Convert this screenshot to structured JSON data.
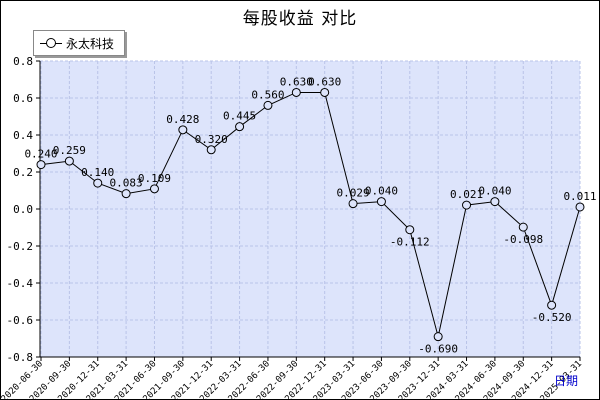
{
  "title": "每股收益 对比",
  "period_label": "日期",
  "legend": {
    "label": "永太科技"
  },
  "chart_data": {
    "type": "line",
    "title": "每股收益 对比",
    "xlabel": "日期",
    "ylabel": "",
    "ylim": [
      -0.8,
      0.8
    ],
    "yticks": [
      "0.8",
      "0.6",
      "0.4",
      "0.2",
      "0.0",
      "-0.2",
      "-0.4",
      "-0.6",
      "-0.8"
    ],
    "grid": true,
    "legend_position": "top-left",
    "categories": [
      "2020-06-30",
      "2020-09-30",
      "2020-12-31",
      "2021-03-31",
      "2021-06-30",
      "2021-09-30",
      "2021-12-31",
      "2022-03-31",
      "2022-06-30",
      "2022-09-30",
      "2022-12-31",
      "2023-03-31",
      "2023-06-30",
      "2023-09-30",
      "2023-12-31",
      "2024-03-31",
      "2024-06-30",
      "2024-09-30",
      "2024-12-31",
      "2025-03-31"
    ],
    "series": [
      {
        "name": "永太科技",
        "values": [
          0.24,
          0.259,
          0.14,
          0.083,
          0.109,
          0.428,
          0.32,
          0.445,
          0.56,
          0.63,
          0.63,
          0.029,
          0.04,
          -0.112,
          -0.69,
          0.021,
          0.04,
          -0.098,
          -0.52,
          0.011
        ],
        "labels": [
          "0.240",
          "0.259",
          "0.140",
          "0.083",
          "0.109",
          "0.428",
          "0.320",
          "0.445",
          "0.560",
          "0.630",
          "0.630",
          "0.029",
          "0.040",
          "-0.112",
          "-0.690",
          "0.021",
          "0.040",
          "-0.098",
          "-0.520",
          "0.011"
        ]
      }
    ]
  }
}
